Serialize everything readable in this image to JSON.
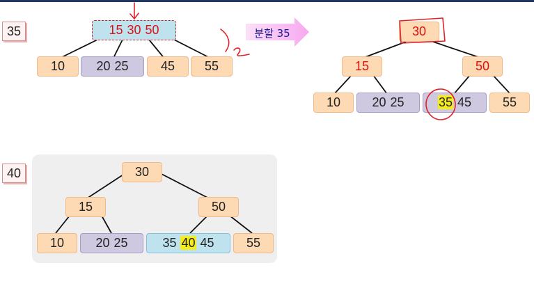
{
  "step1": {
    "label": "35",
    "root": [
      "15",
      "30",
      "50"
    ],
    "leaves": [
      [
        "10"
      ],
      [
        "20",
        "25"
      ],
      [
        "45"
      ],
      [
        "55"
      ]
    ]
  },
  "split_arrow": {
    "text": "분할 35"
  },
  "step1_result": {
    "root": "30",
    "left": "15",
    "right": "50",
    "leaves": [
      [
        "10"
      ],
      [
        "20",
        "25"
      ],
      [
        "35",
        "45"
      ],
      [
        "55"
      ]
    ]
  },
  "step2": {
    "label": "40",
    "root": "30",
    "left": "15",
    "right": "50",
    "leaves": [
      [
        "10"
      ],
      [
        "20",
        "25"
      ],
      [
        "35",
        "40",
        "45"
      ],
      [
        "55"
      ]
    ]
  },
  "colors": {
    "node_fill": "#fdd9b4",
    "node_border": "#f0b98a",
    "purple_fill": "#cec8e0",
    "blue_fill": "#bfe2ef",
    "highlight": "#f6ec18",
    "red_text": "#dd1111",
    "ink_red": "#e0202a",
    "arrow_pink": "#f7b0f2"
  }
}
